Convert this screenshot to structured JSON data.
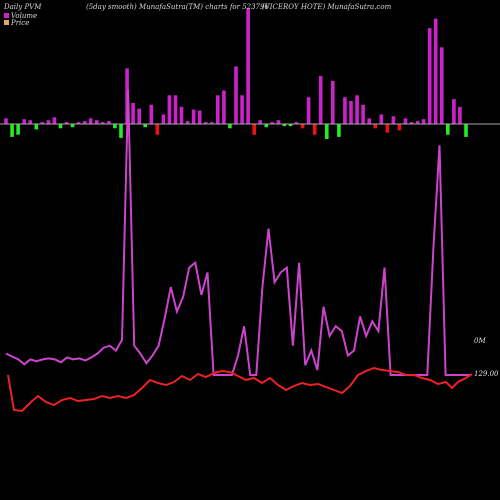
{
  "header": {
    "left": "Daily PVM",
    "center": "(5day smooth) MunafaSutra(TM) charts for 523796",
    "right": "(VICEROY HOTE) MunafaSutra.com"
  },
  "legend": {
    "volume_label": "Volume",
    "price_label": "Price"
  },
  "colors": {
    "background": "#000000",
    "volume_up": "#cc22cc",
    "volume_down_green": "#22ee22",
    "volume_down_red": "#ee1111",
    "volume_line": "#cc44cc",
    "price_line": "#ee2222",
    "baseline": "#aaaaaa"
  },
  "chart_data": {
    "type": "bar+line",
    "volume_axis_label": "0M",
    "price_axis_label": "129.00",
    "volume_bars": [
      {
        "v": 6,
        "c": "up"
      },
      {
        "v": -12,
        "c": "green"
      },
      {
        "v": -10,
        "c": "green"
      },
      {
        "v": 5,
        "c": "up"
      },
      {
        "v": 4,
        "c": "up"
      },
      {
        "v": -5,
        "c": "green"
      },
      {
        "v": 2,
        "c": "up"
      },
      {
        "v": 4,
        "c": "up"
      },
      {
        "v": 7,
        "c": "up"
      },
      {
        "v": -4,
        "c": "green"
      },
      {
        "v": 2,
        "c": "up"
      },
      {
        "v": -3,
        "c": "green"
      },
      {
        "v": 2,
        "c": "up"
      },
      {
        "v": 3,
        "c": "up"
      },
      {
        "v": 6,
        "c": "up"
      },
      {
        "v": 4,
        "c": "up"
      },
      {
        "v": 2,
        "c": "up"
      },
      {
        "v": 3,
        "c": "up"
      },
      {
        "v": -4,
        "c": "green"
      },
      {
        "v": -13,
        "c": "green"
      },
      {
        "v": 58,
        "c": "up"
      },
      {
        "v": 22,
        "c": "up"
      },
      {
        "v": 16,
        "c": "up"
      },
      {
        "v": -3,
        "c": "green"
      },
      {
        "v": 20,
        "c": "up"
      },
      {
        "v": -10,
        "c": "red"
      },
      {
        "v": 10,
        "c": "up"
      },
      {
        "v": 30,
        "c": "up"
      },
      {
        "v": 30,
        "c": "up"
      },
      {
        "v": 18,
        "c": "up"
      },
      {
        "v": 3,
        "c": "up"
      },
      {
        "v": 15,
        "c": "up"
      },
      {
        "v": 14,
        "c": "up"
      },
      {
        "v": 2,
        "c": "up"
      },
      {
        "v": 2,
        "c": "up"
      },
      {
        "v": 30,
        "c": "up"
      },
      {
        "v": 35,
        "c": "up"
      },
      {
        "v": -4,
        "c": "green"
      },
      {
        "v": 60,
        "c": "up"
      },
      {
        "v": 30,
        "c": "up"
      },
      {
        "v": 120,
        "c": "up"
      },
      {
        "v": -10,
        "c": "red"
      },
      {
        "v": 4,
        "c": "up"
      },
      {
        "v": -3,
        "c": "green"
      },
      {
        "v": 2,
        "c": "up"
      },
      {
        "v": 4,
        "c": "up"
      },
      {
        "v": -2,
        "c": "green"
      },
      {
        "v": -2,
        "c": "green"
      },
      {
        "v": 2,
        "c": "up"
      },
      {
        "v": -4,
        "c": "red"
      },
      {
        "v": 28,
        "c": "up"
      },
      {
        "v": -10,
        "c": "red"
      },
      {
        "v": 50,
        "c": "up"
      },
      {
        "v": -14,
        "c": "green"
      },
      {
        "v": 45,
        "c": "up"
      },
      {
        "v": -12,
        "c": "green"
      },
      {
        "v": 28,
        "c": "up"
      },
      {
        "v": 24,
        "c": "up"
      },
      {
        "v": 30,
        "c": "up"
      },
      {
        "v": 20,
        "c": "up"
      },
      {
        "v": 6,
        "c": "up"
      },
      {
        "v": -4,
        "c": "red"
      },
      {
        "v": 10,
        "c": "up"
      },
      {
        "v": -8,
        "c": "red"
      },
      {
        "v": 8,
        "c": "up"
      },
      {
        "v": -6,
        "c": "red"
      },
      {
        "v": 6,
        "c": "up"
      },
      {
        "v": 2,
        "c": "up"
      },
      {
        "v": 3,
        "c": "up"
      },
      {
        "v": 5,
        "c": "up"
      },
      {
        "v": 100,
        "c": "up"
      },
      {
        "v": 110,
        "c": "up"
      },
      {
        "v": 80,
        "c": "up"
      },
      {
        "v": -10,
        "c": "green"
      },
      {
        "v": 26,
        "c": "up"
      },
      {
        "v": 18,
        "c": "up"
      },
      {
        "v": -12,
        "c": "green"
      }
    ],
    "volume_line": [
      22,
      19,
      16,
      11,
      16,
      14,
      16,
      17,
      16,
      13,
      18,
      16,
      17,
      15,
      18,
      22,
      28,
      30,
      25,
      36,
      200,
      30,
      22,
      12,
      20,
      30,
      58,
      90,
      65,
      80,
      110,
      115,
      82,
      105,
      0,
      0,
      0,
      0,
      20,
      50,
      0,
      0,
      90,
      150,
      95,
      105,
      110,
      30,
      115,
      10,
      25,
      5,
      70,
      40,
      50,
      45,
      20,
      25,
      60,
      40,
      55,
      45,
      110,
      0,
      0,
      0,
      0,
      0,
      0,
      0,
      130,
      180,
      0,
      0,
      0,
      0,
      0
    ]
  }
}
